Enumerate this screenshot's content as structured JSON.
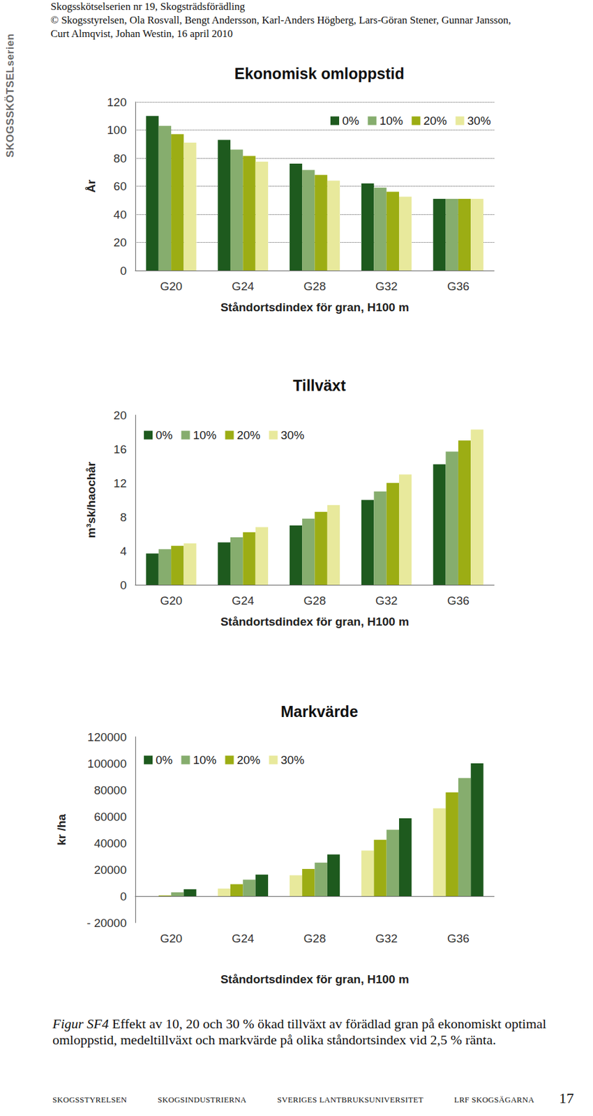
{
  "header": {
    "lines": [
      "Skogsskötselserien nr 19, Skogsträdsförädling",
      "© Skogsstyrelsen, Ola Rosvall, Bengt Andersson, Karl-Anders Högberg, Lars-Göran Stener, Gunnar Jansson,",
      "Curt Almqvist, Johan Westin, 16 april 2010"
    ]
  },
  "side_label": "SKOGSSKÖTSELserien",
  "chart_data": [
    {
      "type": "bar",
      "title": "Ekonomisk omloppstid",
      "xlabel": "Ståndortsdindex för gran, H100 m",
      "ylabel": "År",
      "categories": [
        "G20",
        "G24",
        "G28",
        "G32",
        "G36"
      ],
      "series": [
        {
          "name": "0%",
          "color": "#1e5a1e",
          "values": [
            110,
            93,
            76,
            62,
            51
          ]
        },
        {
          "name": "10%",
          "color": "#86ad6e",
          "values": [
            103,
            86,
            71.5,
            59,
            51
          ]
        },
        {
          "name": "20%",
          "color": "#9cad14",
          "values": [
            97,
            81.5,
            68,
            56,
            51
          ]
        },
        {
          "name": "30%",
          "color": "#e8e99c",
          "values": [
            91,
            77.5,
            64,
            52.5,
            51
          ]
        }
      ],
      "ylim": [
        0,
        120
      ],
      "yticks": [
        0,
        20,
        40,
        60,
        80,
        100,
        120
      ],
      "grid": true,
      "legend": "top-right"
    },
    {
      "type": "bar",
      "title": "Tillväxt",
      "xlabel": "Ståndortsdindex för gran, H100 m",
      "ylabel": "m³sk/haochår",
      "categories": [
        "G20",
        "G24",
        "G28",
        "G32",
        "G36"
      ],
      "series": [
        {
          "name": "0%",
          "color": "#1e5a1e",
          "values": [
            3.7,
            5.0,
            7.0,
            10.0,
            14.2
          ]
        },
        {
          "name": "10%",
          "color": "#86ad6e",
          "values": [
            4.2,
            5.6,
            7.8,
            11.0,
            15.7
          ]
        },
        {
          "name": "20%",
          "color": "#9cad14",
          "values": [
            4.6,
            6.2,
            8.6,
            12.0,
            17.0
          ]
        },
        {
          "name": "30%",
          "color": "#e8e99c",
          "values": [
            4.9,
            6.8,
            9.4,
            13.0,
            18.3
          ]
        }
      ],
      "ylim": [
        0,
        20
      ],
      "yticks": [
        0,
        4,
        8,
        12,
        16,
        20
      ],
      "grid": false,
      "legend": "top-left"
    },
    {
      "type": "bar",
      "title": "Markvärde",
      "xlabel": "Ståndortsdindex för gran, H100 m",
      "ylabel": "kr /ha",
      "categories": [
        "G20",
        "G24",
        "G28",
        "G32",
        "G36"
      ],
      "series": [
        {
          "name": "30%",
          "color": "#e8e99c",
          "values": [
            0,
            5700,
            15700,
            34300,
            66200
          ]
        },
        {
          "name": "20%",
          "color": "#9cad14",
          "values": [
            500,
            9000,
            20500,
            42400,
            78100
          ]
        },
        {
          "name": "10%",
          "color": "#86ad6e",
          "values": [
            2900,
            12400,
            25200,
            50000,
            89000
          ]
        },
        {
          "name": "0%",
          "color": "#1e5a1e",
          "values": [
            5200,
            16200,
            31400,
            58600,
            100000
          ]
        }
      ],
      "ylim": [
        -20000,
        120000
      ],
      "yticks": [
        {
          "value": -20000,
          "label": "- 20000"
        },
        0,
        20000,
        40000,
        60000,
        80000,
        100000,
        120000
      ],
      "grid": false,
      "legend": "top-left"
    }
  ],
  "caption": {
    "label": "Figur SF4",
    "text": "Effekt av 10, 20 och 30 % ökad tillväxt av förädlad gran på ekonomiskt optimal omloppstid, medeltillväxt och markvärde på olika ståndortsindex vid 2,5 % ränta."
  },
  "footer": [
    "SKOGSSTYRELSEN",
    "SKOGSINDUSTRIERNA",
    "SVERIGES LANTBRUKSUNIVERSITET",
    "LRF SKOGSÄGARNA"
  ],
  "page_number": 17
}
